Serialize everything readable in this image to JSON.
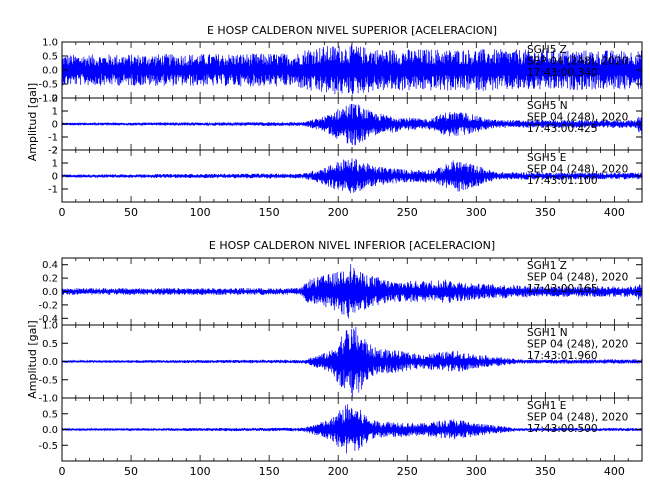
{
  "chart_data": [
    {
      "type": "line",
      "title": "E HOSP CALDERON NIVEL SUPERIOR [ACELERACION]",
      "ylabel": "Amplitud [gal]",
      "xlim": [
        0,
        420
      ],
      "x_ticks": [
        "0",
        "50",
        "100",
        "150",
        "200",
        "250",
        "300",
        "350",
        "400"
      ],
      "trace_color": "#0000ff",
      "series": [
        {
          "name": "SGH5 Z",
          "label_lines": [
            "SGH5 Z",
            "SEP 04 (248), 2020",
            "17:43:00.340"
          ],
          "ylim": [
            -1.0,
            1.0
          ],
          "y_ticks": [
            "1.0",
            "0.5",
            "0.0",
            "-0.5",
            "-1.0"
          ],
          "envelope": [
            [
              0,
              0.55
            ],
            [
              170,
              0.6
            ],
            [
              178,
              0.8
            ],
            [
              200,
              0.9
            ],
            [
              210,
              0.9
            ],
            [
              230,
              0.75
            ],
            [
              300,
              0.75
            ],
            [
              420,
              0.7
            ]
          ]
        },
        {
          "name": "SGH5 N",
          "label_lines": [
            "SGH5 N",
            "SEP 04 (248), 2020",
            "17:43:00.425"
          ],
          "ylim": [
            -2.0,
            2.0
          ],
          "y_ticks": [
            "2",
            "1",
            "0",
            "-1",
            "-2"
          ],
          "envelope": [
            [
              0,
              0.1
            ],
            [
              175,
              0.15
            ],
            [
              190,
              0.6
            ],
            [
              205,
              1.5
            ],
            [
              212,
              1.7
            ],
            [
              225,
              0.9
            ],
            [
              250,
              0.5
            ],
            [
              265,
              0.4
            ],
            [
              280,
              1.0
            ],
            [
              292,
              0.9
            ],
            [
              310,
              0.35
            ],
            [
              330,
              0.3
            ],
            [
              415,
              0.3
            ],
            [
              420,
              0.9
            ]
          ]
        },
        {
          "name": "SGH5 E",
          "label_lines": [
            "SGH5 E",
            "SEP 04 (248), 2020",
            "17:43:01.100"
          ],
          "ylim": [
            -2.0,
            2.0
          ],
          "y_ticks": [
            "2",
            "1",
            "0",
            "-1"
          ],
          "envelope": [
            [
              0,
              0.12
            ],
            [
              175,
              0.2
            ],
            [
              190,
              0.7
            ],
            [
              203,
              1.3
            ],
            [
              212,
              1.4
            ],
            [
              225,
              0.8
            ],
            [
              250,
              0.5
            ],
            [
              270,
              0.5
            ],
            [
              285,
              1.3
            ],
            [
              295,
              1.0
            ],
            [
              315,
              0.3
            ],
            [
              420,
              0.25
            ]
          ]
        }
      ]
    },
    {
      "type": "line",
      "title": "E HOSP CALDERON NIVEL INFERIOR [ACELERACION]",
      "ylabel": "Amplitud [gal]",
      "xlim": [
        0,
        420
      ],
      "x_ticks": [
        "0",
        "50",
        "100",
        "150",
        "200",
        "250",
        "300",
        "350",
        "400"
      ],
      "trace_color": "#0000ff",
      "series": [
        {
          "name": "SGH1 Z",
          "label_lines": [
            "SGH1 Z",
            "SEP 04 (248), 2020",
            "17:43:00.165"
          ],
          "ylim": [
            -0.5,
            0.5
          ],
          "y_ticks": [
            "0.4",
            "0.2",
            "0.0",
            "-0.2",
            "-0.4"
          ],
          "envelope": [
            [
              0,
              0.05
            ],
            [
              173,
              0.05
            ],
            [
              178,
              0.18
            ],
            [
              200,
              0.3
            ],
            [
              208,
              0.45
            ],
            [
              215,
              0.3
            ],
            [
              240,
              0.15
            ],
            [
              280,
              0.18
            ],
            [
              300,
              0.12
            ],
            [
              350,
              0.08
            ],
            [
              415,
              0.08
            ],
            [
              420,
              0.2
            ]
          ]
        },
        {
          "name": "SGH1 N",
          "label_lines": [
            "SGH1 N",
            "SEP 04 (248), 2020",
            "17:43:01.960"
          ],
          "ylim": [
            -1.0,
            1.0
          ],
          "y_ticks": [
            "1.0",
            "0.5",
            "0.0",
            "-0.5",
            "-1.0"
          ],
          "envelope": [
            [
              0,
              0.03
            ],
            [
              175,
              0.05
            ],
            [
              195,
              0.3
            ],
            [
              205,
              0.9
            ],
            [
              212,
              1.0
            ],
            [
              225,
              0.4
            ],
            [
              260,
              0.2
            ],
            [
              285,
              0.3
            ],
            [
              300,
              0.2
            ],
            [
              330,
              0.06
            ],
            [
              420,
              0.06
            ]
          ]
        },
        {
          "name": "SGH1 E",
          "label_lines": [
            "SGH1 E",
            "SEP 04 (248), 2020",
            "17:43:00.500"
          ],
          "ylim": [
            -1.0,
            1.0
          ],
          "y_ticks": [
            "0.5",
            "0.0",
            "-0.5"
          ],
          "envelope": [
            [
              0,
              0.03
            ],
            [
              175,
              0.06
            ],
            [
              195,
              0.35
            ],
            [
              205,
              0.8
            ],
            [
              210,
              0.85
            ],
            [
              225,
              0.3
            ],
            [
              260,
              0.2
            ],
            [
              285,
              0.35
            ],
            [
              300,
              0.2
            ],
            [
              330,
              0.05
            ],
            [
              420,
              0.05
            ]
          ]
        }
      ]
    }
  ]
}
